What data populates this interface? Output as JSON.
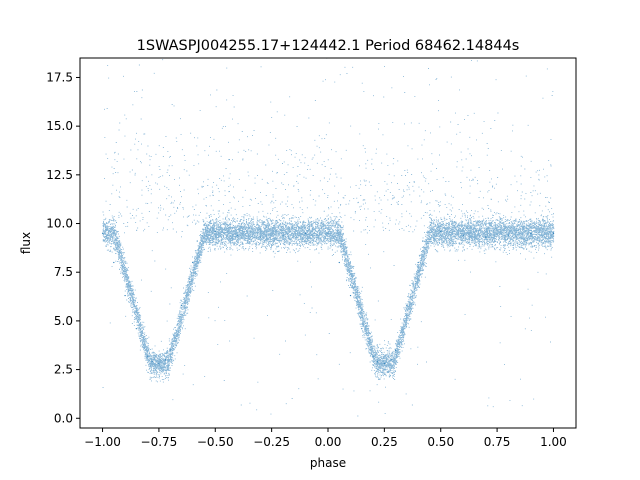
{
  "chart_data": {
    "type": "scatter",
    "title": "1SWASPJ004255.17+124442.1 Period 68462.14844s",
    "xlabel": "phase",
    "ylabel": "flux",
    "xlim": [
      -1.1,
      1.1
    ],
    "ylim": [
      -0.5,
      18.5
    ],
    "xticks": [
      -1.0,
      -0.75,
      -0.5,
      -0.25,
      0.0,
      0.25,
      0.5,
      0.75,
      1.0
    ],
    "xtick_labels": [
      "−1.00",
      "−0.75",
      "−0.50",
      "−0.25",
      "0.00",
      "0.25",
      "0.50",
      "0.75",
      "1.00"
    ],
    "yticks": [
      0.0,
      2.5,
      5.0,
      7.5,
      10.0,
      12.5,
      15.0,
      17.5
    ],
    "ytick_labels": [
      "0.0",
      "2.5",
      "5.0",
      "7.5",
      "10.0",
      "12.5",
      "15.0",
      "17.5"
    ],
    "grid": false,
    "legend": "none",
    "marker_color": "#1f77b4",
    "series": [
      {
        "x": [
          -1.0,
          -0.95,
          -0.9,
          -0.85,
          -0.8,
          -0.78,
          -0.75,
          -0.72,
          -0.7,
          -0.65,
          -0.6,
          -0.58,
          -0.5,
          -0.4,
          -0.3,
          -0.2,
          -0.1,
          0.0,
          0.05,
          0.1,
          0.15,
          0.2,
          0.22,
          0.25,
          0.28,
          0.3,
          0.35,
          0.4,
          0.42,
          0.5,
          0.6,
          0.7,
          0.8,
          0.9,
          1.0
        ],
        "y": [
          9.5,
          8.0,
          6.3,
          4.6,
          3.2,
          2.9,
          2.8,
          3.0,
          3.5,
          5.8,
          8.0,
          9.1,
          9.6,
          9.4,
          9.3,
          9.4,
          9.5,
          9.5,
          8.0,
          6.3,
          4.6,
          3.2,
          2.9,
          2.8,
          3.0,
          3.5,
          5.8,
          8.0,
          9.1,
          9.6,
          9.4,
          9.3,
          9.4,
          9.5,
          9.5
        ]
      }
    ]
  }
}
